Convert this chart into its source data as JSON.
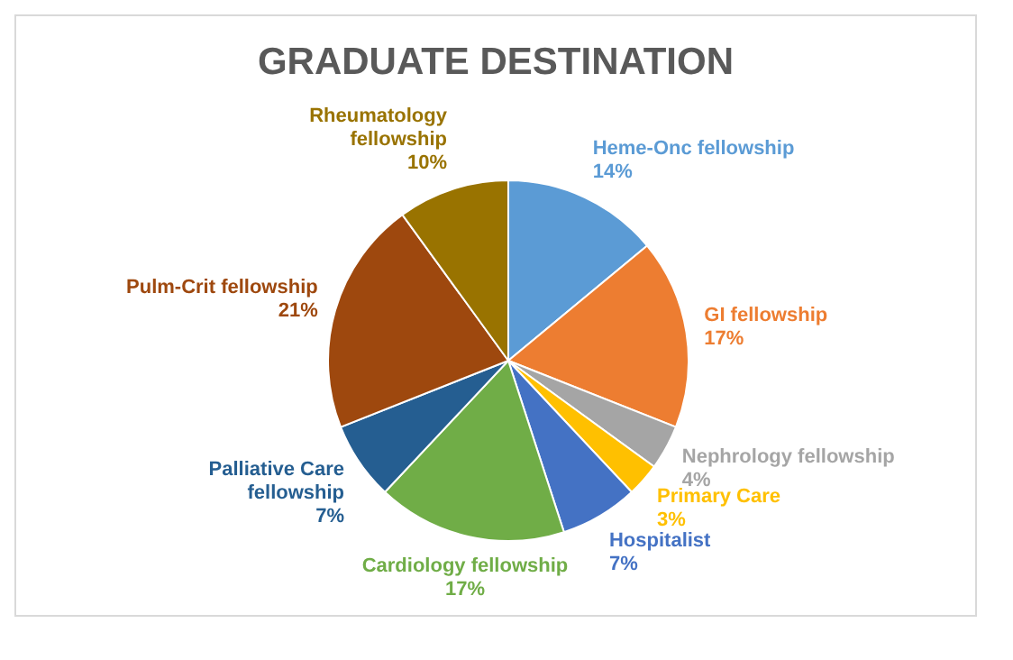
{
  "chart_data": {
    "type": "pie",
    "title": "GRADUATE DESTINATION",
    "categories": [
      "Heme-Onc fellowship",
      "GI fellowship",
      "Nephrology fellowship",
      "Primary Care",
      "Hospitalist",
      "Cardiology fellowship",
      "Palliative Care fellowship",
      "Pulm-Crit fellowship",
      "Rheumatology fellowship"
    ],
    "values": [
      14,
      17,
      4,
      3,
      7,
      17,
      7,
      21,
      10
    ],
    "colors": [
      "#5b9bd5",
      "#ed7d31",
      "#a5a5a5",
      "#ffc000",
      "#4472c4",
      "#70ad47",
      "#255e91",
      "#9e480e",
      "#997300"
    ],
    "value_labels": [
      "14%",
      "17%",
      "4%",
      "3%",
      "7%",
      "17%",
      "7%",
      "21%",
      "10%"
    ],
    "legend": false
  }
}
